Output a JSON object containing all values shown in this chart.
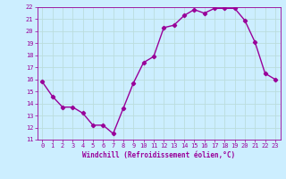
{
  "x": [
    0,
    1,
    2,
    3,
    4,
    5,
    6,
    7,
    8,
    9,
    10,
    11,
    12,
    13,
    14,
    15,
    16,
    17,
    18,
    19,
    20,
    21,
    22,
    23
  ],
  "y": [
    15.8,
    14.6,
    13.7,
    13.7,
    13.2,
    12.2,
    12.2,
    11.5,
    13.6,
    15.7,
    17.4,
    17.9,
    20.3,
    20.5,
    21.3,
    21.8,
    21.5,
    21.9,
    21.9,
    21.9,
    20.9,
    19.1,
    16.5,
    16.0
  ],
  "line_color": "#990099",
  "marker": "D",
  "marker_size": 2.2,
  "bg_color": "#cceeff",
  "grid_color": "#bbdddd",
  "xlabel": "Windchill (Refroidissement éolien,°C)",
  "xlabel_color": "#990099",
  "tick_color": "#990099",
  "ylim": [
    11,
    22
  ],
  "xlim": [
    -0.5,
    23.5
  ],
  "yticks": [
    11,
    12,
    13,
    14,
    15,
    16,
    17,
    18,
    19,
    20,
    21,
    22
  ],
  "xticks": [
    0,
    1,
    2,
    3,
    4,
    5,
    6,
    7,
    8,
    9,
    10,
    11,
    12,
    13,
    14,
    15,
    16,
    17,
    18,
    19,
    20,
    21,
    22,
    23
  ],
  "line_width": 1.0,
  "label_fontsize": 5.5,
  "tick_fontsize": 5.0
}
